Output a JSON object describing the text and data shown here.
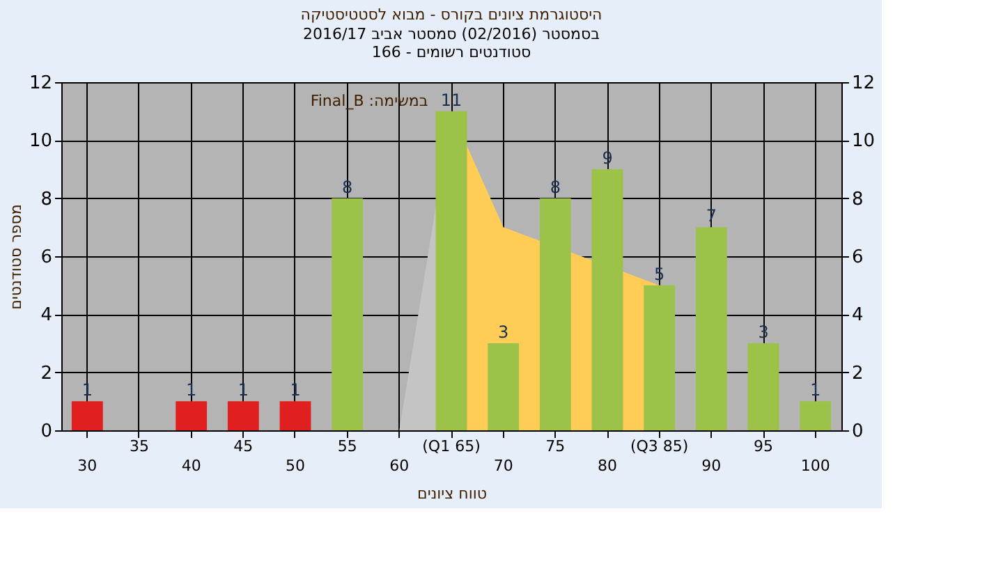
{
  "chart_data": {
    "type": "bar",
    "title": "היסטוגרמת ציונים בקורס - מבוא לסטטיסטיקה",
    "subtitle": "בסמסטר  (02/2016)  סמסטר אביב 2016/17\nסטודנטים רשומים - 166",
    "xlabel": "טווח ציונים",
    "ylabel": "מספר סטודנטים",
    "annotations": [
      "Final_B :במשימה"
    ],
    "categories": [
      "30",
      "35",
      "40",
      "45",
      "50",
      "55",
      "60",
      "(Q1 65)",
      "70",
      "75",
      "80",
      "(Q3 85)",
      "90",
      "95",
      "100"
    ],
    "series": [
      {
        "type": "area",
        "color": "#c4c4c4",
        "values": [
          null,
          null,
          null,
          null,
          null,
          null,
          0,
          11,
          null,
          null,
          null,
          null,
          null,
          null,
          null
        ]
      },
      {
        "type": "area",
        "color": "#ffcc55",
        "values": [
          null,
          null,
          null,
          null,
          null,
          null,
          null,
          11,
          7,
          null,
          null,
          5,
          null,
          null,
          null
        ]
      },
      {
        "colors": [
          "#e02020",
          null,
          "#e02020",
          "#e02020",
          "#e02020",
          "#9cc24a",
          null,
          "#9cc24a",
          "#9cc24a",
          "#9cc24a",
          "#9cc24a",
          "#9cc24a",
          "#9cc24a",
          "#9cc24a",
          "#9cc24a"
        ],
        "values": [
          1,
          null,
          1,
          1,
          1,
          8,
          null,
          11,
          3,
          8,
          9,
          5,
          7,
          3,
          1
        ],
        "value_labels": [
          "1",
          null,
          "1",
          "1",
          "1",
          "8",
          null,
          "11",
          "3",
          "8",
          "9",
          "5",
          "7",
          "3",
          "1"
        ]
      }
    ],
    "ylim": [
      0,
      12
    ],
    "yticks": [
      0,
      2,
      4,
      6,
      8,
      10,
      12
    ],
    "y2lim": [
      0,
      12
    ],
    "y2ticks": [
      0,
      2,
      4,
      6,
      8,
      10,
      12
    ],
    "grid": true
  }
}
